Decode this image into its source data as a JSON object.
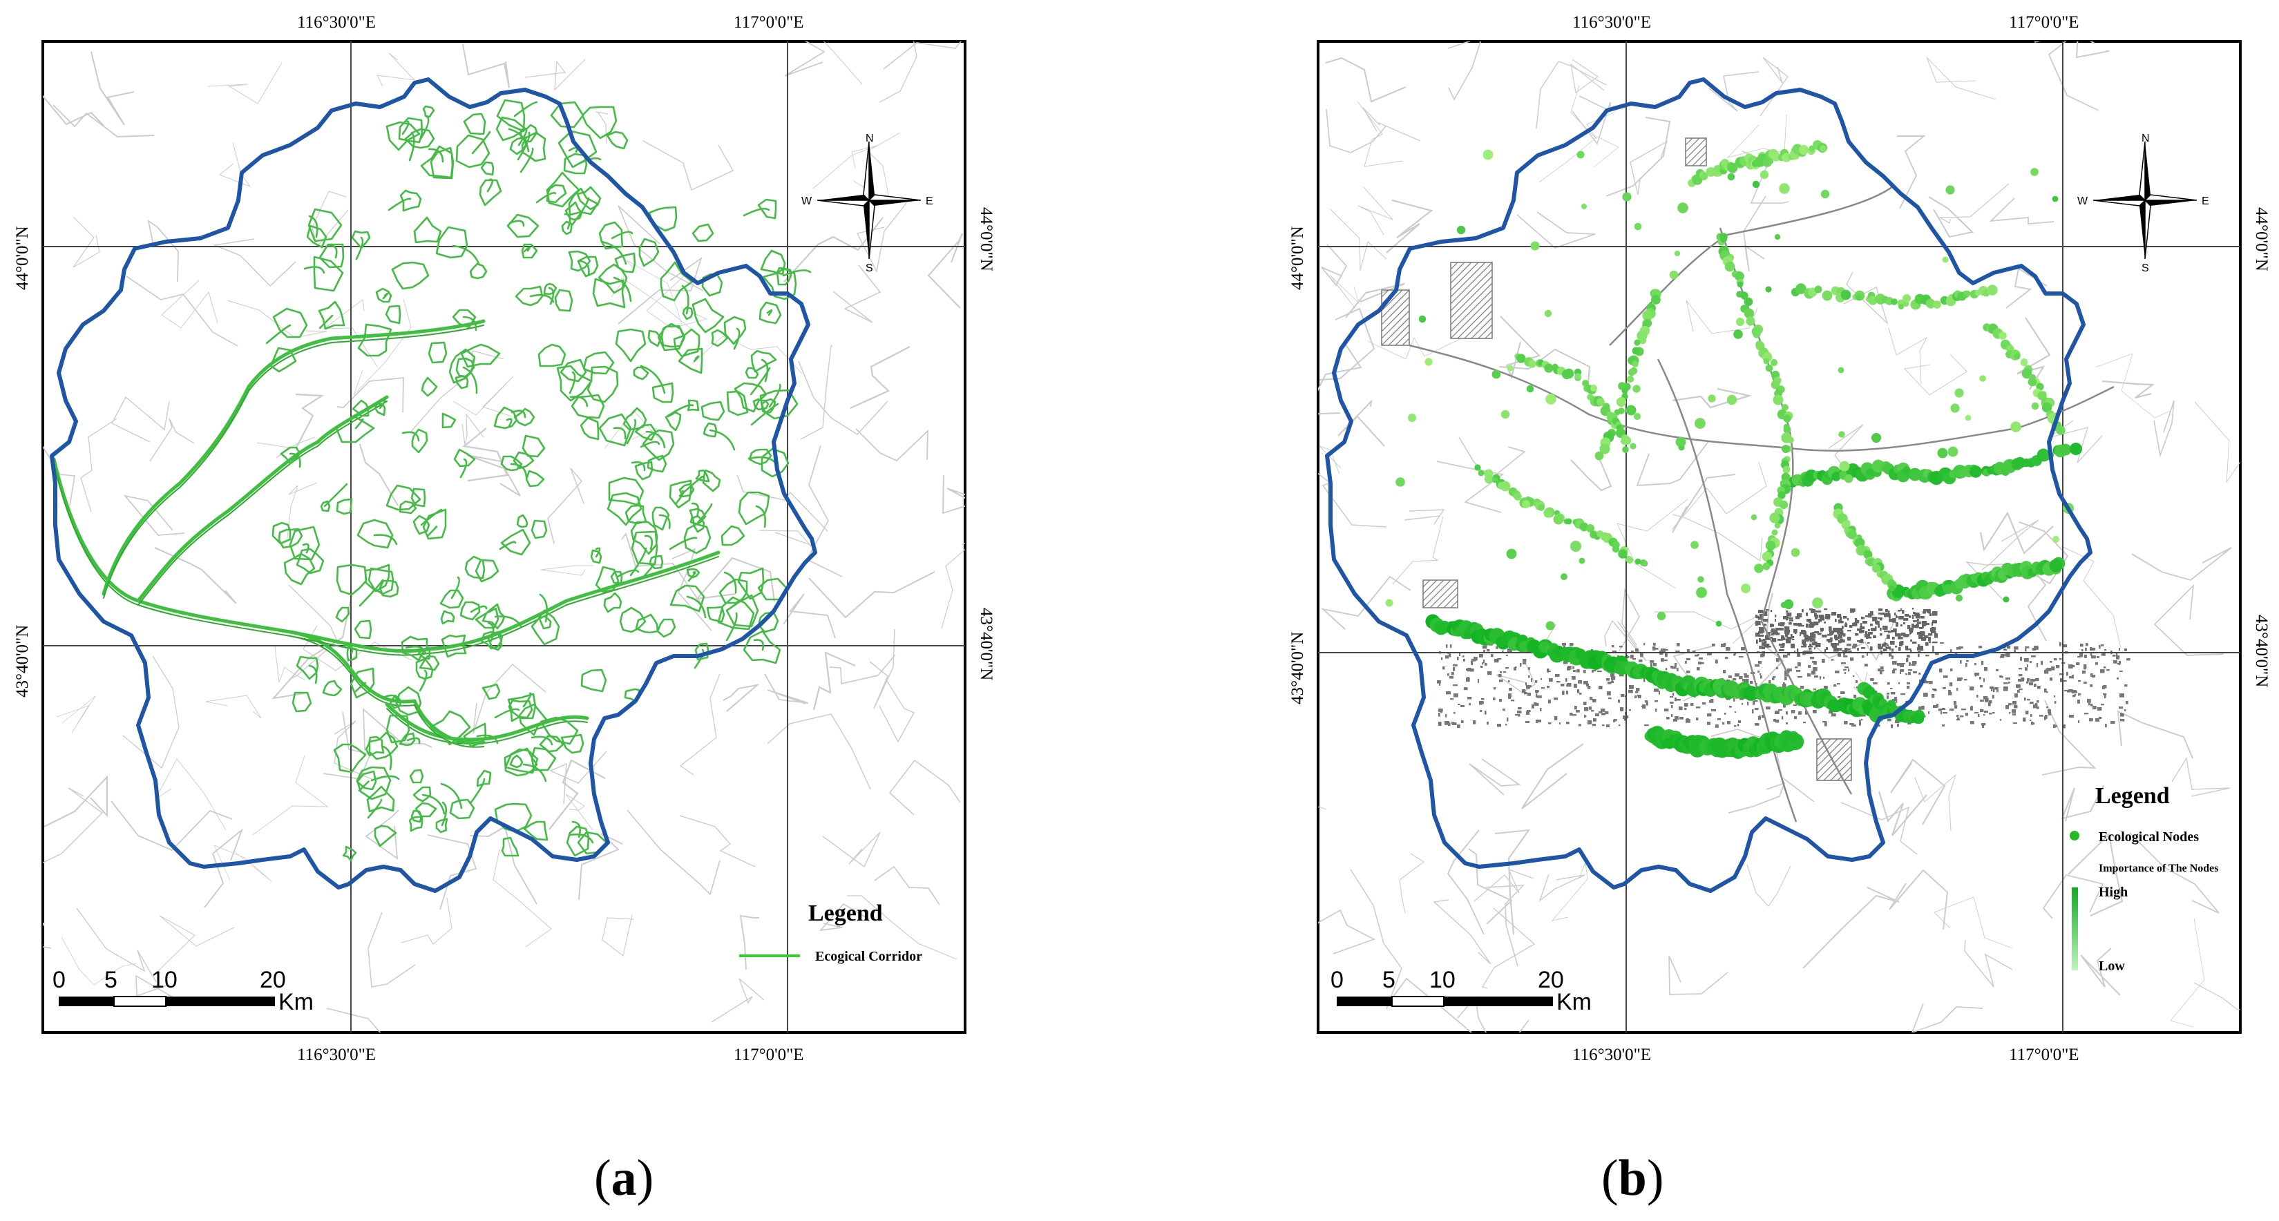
{
  "panels": [
    {
      "id": "a",
      "caption": "a",
      "top_labels": [
        "116°30'0\"E",
        "117°0'0\"E"
      ],
      "bottom_labels": [
        "116°30'0\"E",
        "117°0'0\"E"
      ],
      "left_labels": [
        "44°0'0\"N",
        "43°40'0\"N"
      ],
      "right_labels": [
        "44°0'0\"N",
        "43°40'0\"N"
      ],
      "legend": {
        "title": "Legend",
        "items": [
          {
            "label": "Ecogical Corridor",
            "symbol": "line",
            "color": "#33cc33"
          }
        ]
      },
      "scale": {
        "ticks": [
          "0",
          "5",
          "10",
          "20"
        ],
        "unit": "Km"
      },
      "compass": {
        "n": "N",
        "s": "S",
        "e": "E",
        "w": "W"
      }
    },
    {
      "id": "b",
      "caption": "b",
      "top_labels": [
        "116°30'0\"E",
        "117°0'0\"E"
      ],
      "bottom_labels": [
        "116°30'0\"E",
        "117°0'0\"E"
      ],
      "left_labels": [
        "44°0'0\"N",
        "43°40'0\"N"
      ],
      "right_labels": [
        "44°0'0\"N",
        "43°40'0\"N"
      ],
      "legend": {
        "title": "Legend",
        "items": [
          {
            "label": "Ecological Nodes",
            "symbol": "point",
            "color": "#22bb22"
          }
        ],
        "ramp_title": "Importance of The Nodes",
        "ramp_high": "High",
        "ramp_low": "Low",
        "ramp_colors": [
          "#11aa22",
          "#aaf0aa"
        ]
      },
      "scale": {
        "ticks": [
          "0",
          "5",
          "10",
          "20"
        ],
        "unit": "Km"
      },
      "compass": {
        "n": "N",
        "s": "S",
        "e": "E",
        "w": "W"
      }
    }
  ],
  "colors": {
    "boundary": "#1f55a6",
    "corridor": "#3fbf3f",
    "node_high": "#11b322",
    "node_low": "#99ee77",
    "basemap": "#c9c9c9",
    "urban": "#6f6f6f"
  }
}
